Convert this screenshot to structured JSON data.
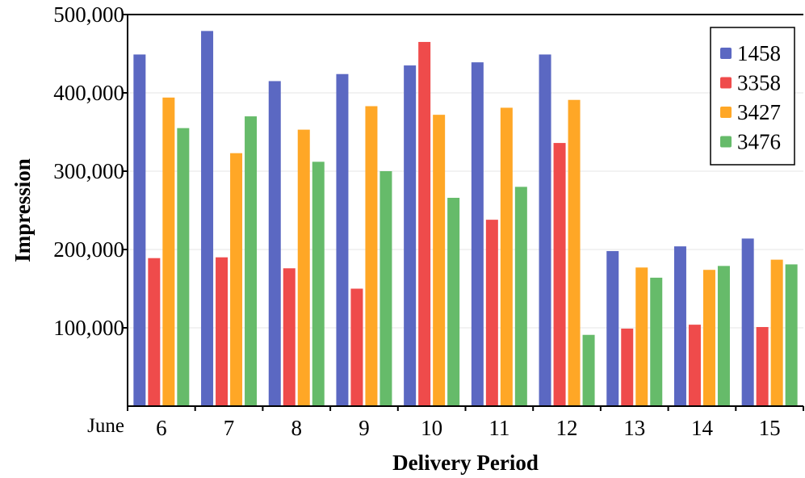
{
  "chart_data": {
    "type": "bar",
    "categories": [
      "6",
      "7",
      "8",
      "9",
      "10",
      "11",
      "12",
      "13",
      "14",
      "15"
    ],
    "x_prefix": "June",
    "series": [
      {
        "name": "1458",
        "color": "#5b68c2",
        "values": [
          449000,
          479000,
          415000,
          424000,
          435000,
          439000,
          449000,
          198000,
          204000,
          214000
        ]
      },
      {
        "name": "3358",
        "color": "#ef4b4b",
        "values": [
          189000,
          190000,
          176000,
          150000,
          465000,
          238000,
          336000,
          99000,
          104000,
          101000
        ]
      },
      {
        "name": "3427",
        "color": "#ffa726",
        "values": [
          394000,
          323000,
          353000,
          383000,
          372000,
          381000,
          391000,
          177000,
          174000,
          187000
        ]
      },
      {
        "name": "3476",
        "color": "#66bb6a",
        "values": [
          355000,
          370000,
          312000,
          300000,
          266000,
          280000,
          91000,
          164000,
          179000,
          181000
        ]
      }
    ],
    "title": "",
    "xlabel": "Delivery Period",
    "ylabel": "Impression",
    "ylim": [
      0,
      500000
    ],
    "yticks": [
      100000,
      200000,
      300000,
      400000,
      500000
    ],
    "ytick_labels": [
      "100,000",
      "200,000",
      "300,000",
      "400,000",
      "500,000"
    ],
    "grid": "horizontal",
    "legend_position": "top-right"
  }
}
